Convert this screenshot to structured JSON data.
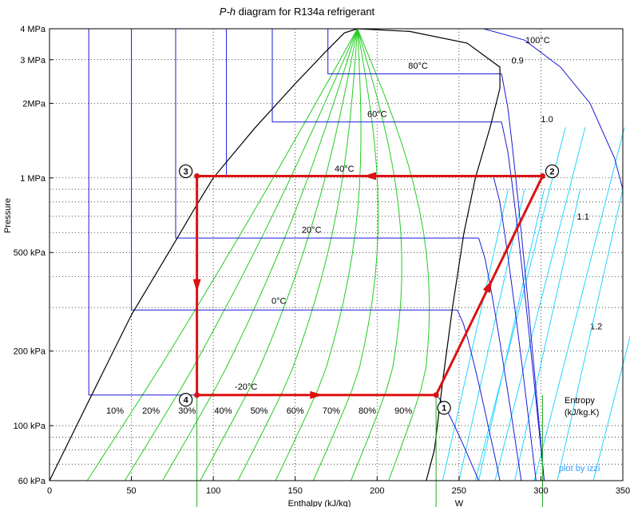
{
  "chart_data": {
    "type": "line",
    "title_prefix": "P-h",
    "title_rest": " diagram for R134a refrigerant",
    "xlabel": "Enthalpy (kJ/kg)",
    "ylabel": "Pressure",
    "x_range": [
      0,
      350
    ],
    "y_range_kPa": [
      60,
      4000
    ],
    "y_scale": "log",
    "x_ticks": [
      {
        "v": 0,
        "label": "0"
      },
      {
        "v": 50,
        "label": "50"
      },
      {
        "v": 100,
        "label": "100"
      },
      {
        "v": 150,
        "label": "150"
      },
      {
        "v": 200,
        "label": "200"
      },
      {
        "v": 250,
        "label": "250"
      },
      {
        "v": 300,
        "label": "300"
      },
      {
        "v": 350,
        "label": "350"
      }
    ],
    "y_ticks": [
      {
        "v": 60,
        "label": "60 kPa"
      },
      {
        "v": 100,
        "label": "100 kPa"
      },
      {
        "v": 200,
        "label": "200 kPa"
      },
      {
        "v": 500,
        "label": "500 kPa"
      },
      {
        "v": 1000,
        "label": "1 MPa"
      },
      {
        "v": 2000,
        "label": "2MPa"
      },
      {
        "v": 3000,
        "label": "3 MPa"
      },
      {
        "v": 4000,
        "label": "4 MPa"
      }
    ],
    "y_minor_grid": [
      70,
      80,
      90,
      300,
      400,
      600,
      700,
      800,
      900
    ],
    "saturation_dome": {
      "liquid": [
        [
          0,
          60
        ],
        [
          25,
          130
        ],
        [
          50,
          280
        ],
        [
          75,
          530
        ],
        [
          90,
          780
        ],
        [
          100,
          1000
        ],
        [
          125,
          1580
        ],
        [
          150,
          2400
        ],
        [
          168,
          3200
        ],
        [
          180,
          3850
        ],
        [
          188,
          4000
        ]
      ],
      "vapor": [
        [
          188,
          4000
        ],
        [
          220,
          3900
        ],
        [
          255,
          3500
        ],
        [
          275,
          2800
        ],
        [
          275,
          2300
        ],
        [
          269,
          1600
        ],
        [
          260,
          1000
        ],
        [
          253,
          600
        ],
        [
          246,
          300
        ],
        [
          240,
          150
        ],
        [
          235,
          80
        ],
        [
          230,
          60
        ]
      ],
      "apex": [
        203,
        4000
      ]
    },
    "isotherms": [
      {
        "label": "-20°C",
        "p": 133,
        "h_liq": 24,
        "h_vap": 236,
        "label_at": [
          120,
          140
        ]
      },
      {
        "label": "0°C",
        "p": 293,
        "h_liq": 50,
        "h_vap": 249,
        "label_at": [
          140,
          310
        ]
      },
      {
        "label": "20°C",
        "p": 572,
        "h_liq": 77,
        "h_vap": 262,
        "label_at": [
          160,
          600
        ]
      },
      {
        "label": "40°C",
        "p": 1017,
        "h_liq": 108,
        "h_vap": 271,
        "label_at": [
          180,
          1060
        ]
      },
      {
        "label": "60°C",
        "p": 1682,
        "h_liq": 136,
        "h_vap": 276,
        "label_at": [
          200,
          1760
        ]
      },
      {
        "label": "80°C",
        "p": 2630,
        "h_liq": 170,
        "h_vap": 276,
        "label_at": [
          225,
          2760
        ]
      },
      {
        "label": "100°C",
        "h_top": 265,
        "curve": [
          [
            265,
            4000
          ],
          [
            290,
            3600
          ],
          [
            312,
            2800
          ],
          [
            330,
            2000
          ],
          [
            345,
            1200
          ],
          [
            350,
            900
          ]
        ],
        "label_at": [
          298,
          3500
        ]
      }
    ],
    "quality_lines": [
      "10%",
      "20%",
      "30%",
      "40%",
      "50%",
      "60%",
      "70%",
      "80%",
      "90%"
    ],
    "quality_labels_h": [
      40,
      62,
      84,
      106,
      128,
      150,
      172,
      194,
      216
    ],
    "quality_label_p": 112,
    "entropy_lines": [
      {
        "label": "0.9",
        "label_at": [
          282,
          2900
        ],
        "h60": 260
      },
      {
        "label": "1.0",
        "label_at": [
          300,
          1680
        ],
        "h60": 272
      },
      {
        "label": "1.1",
        "label_at": [
          322,
          680
        ],
        "h60": 296
      },
      {
        "label": "1.2",
        "label_at": [
          330,
          245
        ],
        "h60": 332
      }
    ],
    "entropy_title": "Entropy",
    "entropy_units": "(kJ/kg.K)",
    "credit": "plot by izzi",
    "cycle": {
      "states": [
        {
          "n": "1",
          "h": 236,
          "p": 133
        },
        {
          "n": "2",
          "h": 301,
          "p": 1017
        },
        {
          "n": "3",
          "h": 90,
          "p": 1017
        },
        {
          "n": "4",
          "h": 90,
          "p": 133
        }
      ],
      "work_label": "W",
      "color": "#dd1111"
    }
  }
}
